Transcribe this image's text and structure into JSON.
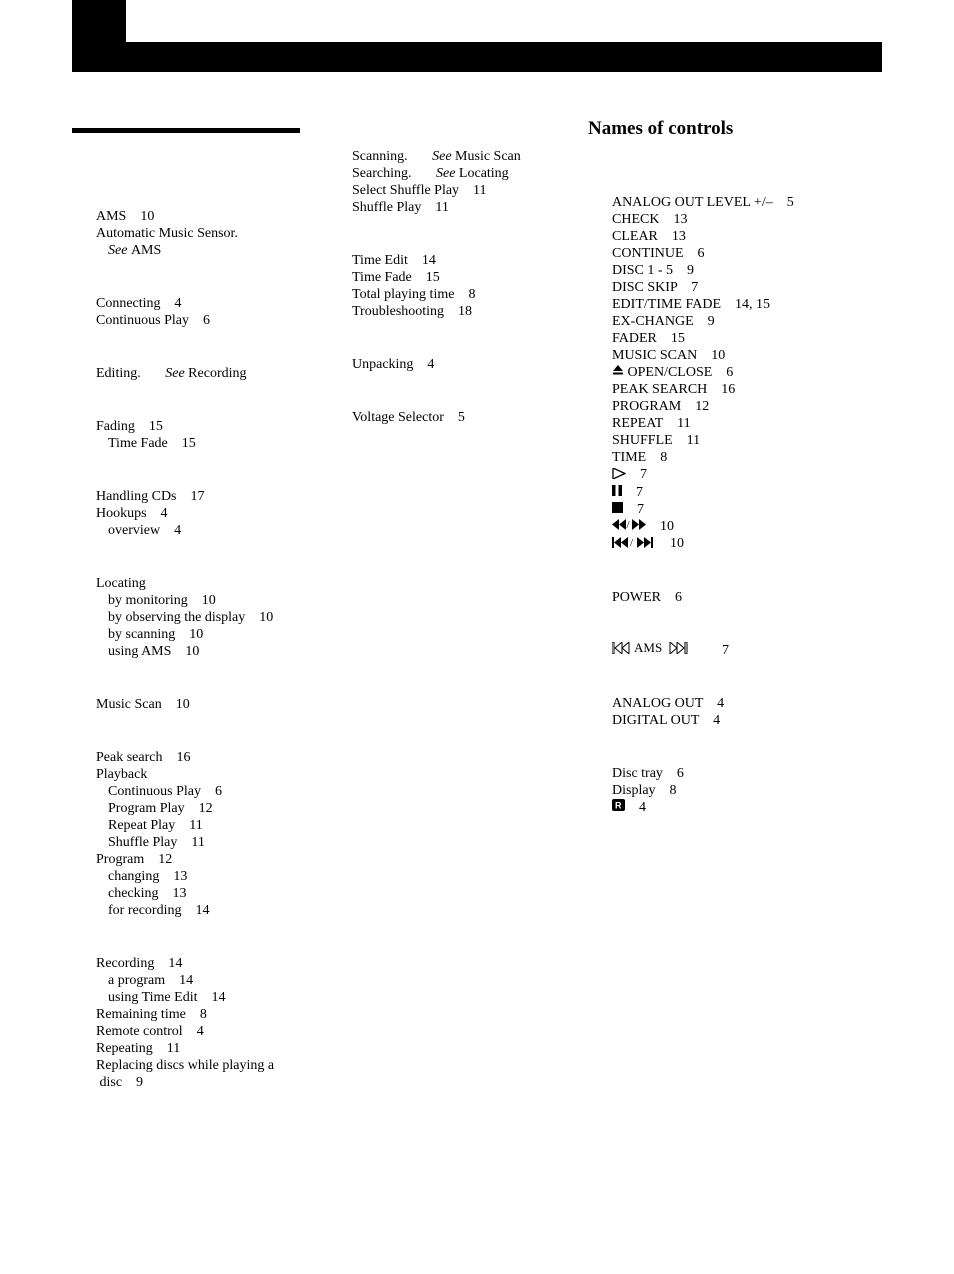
{
  "heading_right": "Names of controls",
  "col1": [
    [
      {
        "t": "AMS    10"
      },
      {
        "t": "Automatic Music Sensor."
      },
      {
        "t": "AMS",
        "sub": 1,
        "seePrefix": "See "
      }
    ],
    [
      {
        "t": "Connecting    4"
      },
      {
        "t": "Continuous Play    6"
      }
    ],
    [
      {
        "t": "Editing.       ",
        "seeSuffix": "Recording",
        "seePrefix": "See "
      }
    ],
    [
      {
        "t": "Fading    15"
      },
      {
        "t": "Time Fade    15",
        "sub": 1
      }
    ],
    [
      {
        "t": "Handling CDs    17"
      },
      {
        "t": "Hookups    4"
      },
      {
        "t": "overview    4",
        "sub": 1
      }
    ],
    [
      {
        "t": "Locating"
      },
      {
        "t": "by monitoring    10",
        "sub": 1
      },
      {
        "t": "by observing the display    10",
        "sub": 1
      },
      {
        "t": "by scanning    10",
        "sub": 1
      },
      {
        "t": "using AMS    10",
        "sub": 1
      }
    ],
    [
      {
        "t": "Music Scan    10"
      }
    ],
    [
      {
        "t": "Peak search    16"
      },
      {
        "t": "Playback"
      },
      {
        "t": "Continuous Play    6",
        "sub": 1
      },
      {
        "t": "Program Play    12",
        "sub": 1
      },
      {
        "t": "Repeat Play    11",
        "sub": 1
      },
      {
        "t": "Shuffle Play    11",
        "sub": 1
      },
      {
        "t": "Program    12"
      },
      {
        "t": "changing    13",
        "sub": 1
      },
      {
        "t": "checking    13",
        "sub": 1
      },
      {
        "t": "for recording    14",
        "sub": 1
      }
    ],
    [
      {
        "t": "Recording    14"
      },
      {
        "t": "a program    14",
        "sub": 1
      },
      {
        "t": "using Time Edit    14",
        "sub": 1
      },
      {
        "t": "Remaining time    8"
      },
      {
        "t": "Remote control    4"
      },
      {
        "t": "Repeating    11"
      },
      {
        "t": "Replacing discs while playing a"
      },
      {
        "t": " disc    9"
      }
    ]
  ],
  "col2": [
    [
      {
        "t": "Scanning.       ",
        "seeSuffix": "Music Scan",
        "seePrefix": "See "
      },
      {
        "t": "Searching.       ",
        "seeSuffix": "Locating",
        "seePrefix": "See "
      },
      {
        "t": "Select Shuffle Play    11"
      },
      {
        "t": "Shuffle Play    11"
      }
    ],
    [
      {
        "t": "Time Edit    14"
      },
      {
        "t": "Time Fade    15"
      },
      {
        "t": "Total playing time    8"
      },
      {
        "t": "Troubleshooting    18"
      }
    ],
    [
      {
        "t": "Unpacking    4"
      }
    ],
    [
      {
        "t": "Voltage Selector    5"
      }
    ]
  ],
  "col3": [
    [
      {
        "t": "ANALOG OUT LEVEL +/–    5"
      },
      {
        "t": "CHECK    13"
      },
      {
        "t": "CLEAR    13"
      },
      {
        "t": "CONTINUE    6"
      },
      {
        "t": "DISC 1 - 5    9"
      },
      {
        "t": "DISC SKIP    7"
      },
      {
        "t": "EDIT/TIME FADE    14, 15"
      },
      {
        "t": "EX-CHANGE    9"
      },
      {
        "t": "FADER    15"
      },
      {
        "t": "MUSIC SCAN    10"
      },
      {
        "icon": "eject",
        "t": " OPEN/CLOSE    6"
      },
      {
        "t": "PEAK SEARCH    16"
      },
      {
        "t": "PROGRAM    12"
      },
      {
        "t": "REPEAT    11"
      },
      {
        "t": "SHUFFLE    11"
      },
      {
        "t": "TIME    8"
      },
      {
        "icon": "play",
        "t": "    7"
      },
      {
        "icon": "pause",
        "t": "    7"
      },
      {
        "icon": "stop",
        "t": "    7"
      },
      {
        "icon": "rewff",
        "t": "    10"
      },
      {
        "icon": "skip",
        "t": "    10"
      }
    ],
    [
      {
        "t": "POWER    6"
      }
    ],
    [
      {
        "icon": "ams",
        "t": "    7"
      }
    ],
    [
      {
        "t": "ANALOG OUT    4"
      },
      {
        "t": "DIGITAL OUT    4"
      }
    ],
    [
      {
        "t": "Disc tray    6"
      },
      {
        "t": "Display    8"
      },
      {
        "icon": "remote",
        "t": "    4"
      }
    ]
  ],
  "col_tops": {
    "col1": 208,
    "col2": 148,
    "col3": 194
  }
}
